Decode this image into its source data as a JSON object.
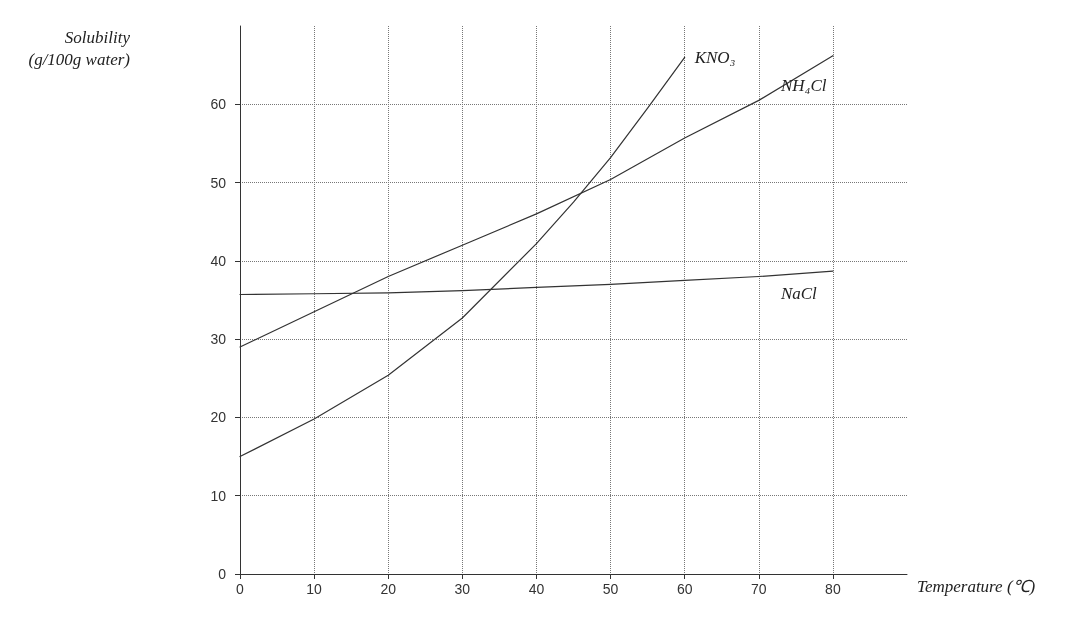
{
  "chart_data": {
    "type": "line",
    "xlabel": "Temperature (℃)",
    "ylabel": "Solubility\n(g/100g water)",
    "xlim": [
      0,
      90
    ],
    "ylim": [
      0,
      70
    ],
    "xticks": [
      0,
      10,
      20,
      30,
      40,
      50,
      60,
      70,
      80
    ],
    "yticks": [
      0,
      10,
      20,
      30,
      40,
      50,
      60
    ],
    "grid": true,
    "marker": "none",
    "line_style": "solid",
    "series": [
      {
        "name": "KNO₃",
        "color": "#333333",
        "x": [
          0,
          10,
          20,
          30,
          40,
          45,
          50,
          55,
          60
        ],
        "values": [
          15,
          19.8,
          25.4,
          32.7,
          42.2,
          47.5,
          53.2,
          59.5,
          66
        ]
      },
      {
        "name": "NH₄Cl",
        "color": "#333333",
        "x": [
          0,
          10,
          20,
          30,
          40,
          50,
          60,
          70,
          80
        ],
        "values": [
          29,
          33.5,
          38,
          42,
          46,
          50.4,
          55.7,
          60.5,
          66.2
        ]
      },
      {
        "name": "NaCl",
        "color": "#333333",
        "x": [
          0,
          10,
          20,
          30,
          40,
          50,
          60,
          70,
          80
        ],
        "values": [
          35.7,
          35.8,
          35.9,
          36.2,
          36.6,
          37,
          37.5,
          38,
          38.7
        ]
      }
    ]
  }
}
